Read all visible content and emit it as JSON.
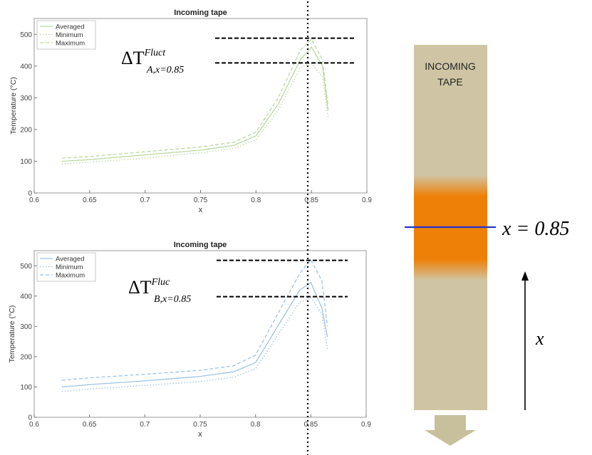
{
  "chart_data": [
    {
      "type": "line",
      "title": "Incoming tape",
      "xlabel": "x",
      "ylabel": "Temperature (°C)",
      "xlim": [
        0.6,
        0.9
      ],
      "ylim": [
        0,
        550
      ],
      "xticks": [
        "0.6",
        "0.65",
        "0.7",
        "0.75",
        "0.8",
        "0.85",
        "0.9"
      ],
      "yticks": [
        "0",
        "100",
        "200",
        "300",
        "400",
        "500"
      ],
      "legend_position": "top-left",
      "color": "#b9d9a0",
      "annotation": {
        "symbol": "ΔT",
        "superscript": "Fluct",
        "subscript": "A,x=0.85"
      },
      "series": [
        {
          "name": "Averaged",
          "style": "solid",
          "x": [
            0.625,
            0.65,
            0.7,
            0.75,
            0.78,
            0.8,
            0.82,
            0.84,
            0.85,
            0.86,
            0.865
          ],
          "y": [
            100,
            105,
            120,
            135,
            150,
            180,
            280,
            420,
            460,
            400,
            260
          ]
        },
        {
          "name": "Minimum",
          "style": "dotted",
          "x": [
            0.625,
            0.65,
            0.7,
            0.75,
            0.78,
            0.8,
            0.82,
            0.84,
            0.85,
            0.86,
            0.865
          ],
          "y": [
            92,
            97,
            110,
            127,
            140,
            168,
            260,
            395,
            410,
            365,
            240
          ]
        },
        {
          "name": "Maximum",
          "style": "dashed",
          "x": [
            0.625,
            0.65,
            0.7,
            0.75,
            0.78,
            0.8,
            0.82,
            0.84,
            0.85,
            0.86,
            0.865
          ],
          "y": [
            110,
            115,
            130,
            145,
            160,
            192,
            300,
            450,
            485,
            420,
            275
          ]
        }
      ]
    },
    {
      "type": "line",
      "title": "Incoming tape",
      "xlabel": "x",
      "ylabel": "Temperature (°C)",
      "xlim": [
        0.6,
        0.9
      ],
      "ylim": [
        0,
        550
      ],
      "xticks": [
        "0.6",
        "0.65",
        "0.7",
        "0.75",
        "0.8",
        "0.85",
        "0.9"
      ],
      "yticks": [
        "0",
        "100",
        "200",
        "300",
        "400",
        "500"
      ],
      "legend_position": "top-left",
      "color": "#9dc3e6",
      "annotation": {
        "symbol": "ΔT",
        "superscript": "Fluc",
        "subscript": "B,x=0.85"
      },
      "series": [
        {
          "name": "Averaged",
          "style": "solid",
          "x": [
            0.625,
            0.65,
            0.7,
            0.75,
            0.78,
            0.8,
            0.82,
            0.84,
            0.85,
            0.86,
            0.865
          ],
          "y": [
            100,
            108,
            120,
            135,
            150,
            180,
            300,
            420,
            445,
            360,
            265
          ]
        },
        {
          "name": "Minimum",
          "style": "dotted",
          "x": [
            0.625,
            0.65,
            0.7,
            0.75,
            0.78,
            0.8,
            0.82,
            0.84,
            0.85,
            0.86,
            0.865
          ],
          "y": [
            85,
            93,
            105,
            118,
            132,
            160,
            270,
            380,
            395,
            340,
            225
          ]
        },
        {
          "name": "Maximum",
          "style": "dashed",
          "x": [
            0.625,
            0.65,
            0.7,
            0.75,
            0.78,
            0.8,
            0.82,
            0.84,
            0.85,
            0.86,
            0.865
          ],
          "y": [
            122,
            130,
            142,
            155,
            170,
            205,
            340,
            475,
            520,
            450,
            300
          ]
        }
      ]
    }
  ],
  "tape": {
    "label_line1": "INCOMING",
    "label_line2": "TAPE",
    "position_label": "x = 0.85",
    "axis_label": "x",
    "tape_color": "#cfc5a4",
    "heat_color": "#ee8008",
    "marker_color": "#2233cc",
    "arrow_color": "#c8bf9c"
  }
}
